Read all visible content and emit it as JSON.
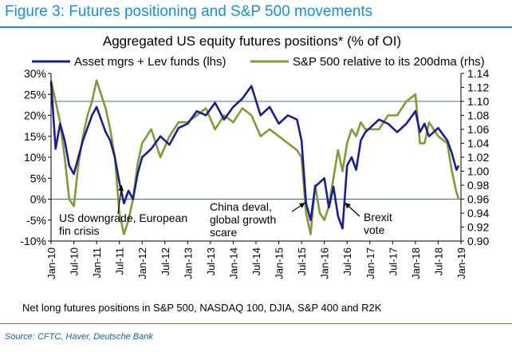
{
  "figure": {
    "title": "Figure 3: Futures positioning and S&P 500 movements",
    "footnote": "Net long futures positions in S&P 500, NASDAQ 100, DJIA, S&P 400 and R2K",
    "source": "Source: CFTC, Haver, Deutsche Bank"
  },
  "chart_data": {
    "type": "line",
    "title": "Aggregated US equity futures positions* (% of OI)",
    "x_tick_labels": [
      "Jan-10",
      "Jul-10",
      "Jan-11",
      "Jul-11",
      "Jan-12",
      "Jul-12",
      "Jan-13",
      "Jul-13",
      "Jan-14",
      "Jul-14",
      "Jan-15",
      "Jul-15",
      "Jan-16",
      "Jul-16",
      "Jan-17",
      "Jul-17",
      "Jan-18",
      "Jul-18",
      "Jan-19"
    ],
    "left_axis": {
      "ticks": [
        "30%",
        "25%",
        "20%",
        "15%",
        "10%",
        "5%",
        "0%",
        "-5%",
        "-10%"
      ],
      "range": [
        -10,
        30
      ],
      "unit": "%"
    },
    "right_axis": {
      "ticks": [
        "1.14",
        "1.12",
        "1.10",
        "1.08",
        "1.06",
        "1.04",
        "1.02",
        "1.00",
        "0.98",
        "0.96",
        "0.94",
        "0.92",
        "0.90"
      ],
      "range": [
        0.9,
        1.14
      ]
    },
    "grid": false,
    "reference_lines": [
      {
        "axis": "right",
        "value": 1.1
      },
      {
        "axis": "right",
        "value": 0.96
      }
    ],
    "legend_position": "top",
    "series": [
      {
        "name": "Asset mgrs + Lev funds (lhs)",
        "axis": "left",
        "color": "#1b1f8c",
        "x": [
          2010.0,
          2010.1,
          2010.2,
          2010.3,
          2010.4,
          2010.5,
          2010.6,
          2010.7,
          2010.8,
          2010.9,
          2011.0,
          2011.1,
          2011.2,
          2011.3,
          2011.4,
          2011.5,
          2011.6,
          2011.7,
          2011.8,
          2011.9,
          2012.0,
          2012.2,
          2012.4,
          2012.6,
          2012.8,
          2013.0,
          2013.2,
          2013.4,
          2013.6,
          2013.8,
          2014.0,
          2014.2,
          2014.4,
          2014.6,
          2014.8,
          2015.0,
          2015.2,
          2015.4,
          2015.5,
          2015.6,
          2015.7,
          2015.8,
          2016.0,
          2016.1,
          2016.2,
          2016.3,
          2016.4,
          2016.5,
          2016.6,
          2016.7,
          2016.8,
          2016.9,
          2017.0,
          2017.2,
          2017.4,
          2017.6,
          2017.8,
          2018.0,
          2018.1,
          2018.2,
          2018.3,
          2018.5,
          2018.7,
          2018.8,
          2018.9,
          2018.95
        ],
        "values": [
          28,
          12,
          18,
          14,
          8,
          6,
          10,
          14,
          17,
          20,
          22,
          19,
          16,
          14,
          10,
          4,
          -1,
          2,
          0,
          6,
          10,
          12,
          15,
          13,
          17,
          18,
          21,
          20,
          23,
          19,
          22,
          24,
          27,
          20,
          22,
          18,
          20,
          19,
          14,
          -1,
          -5,
          3,
          5,
          -2,
          3,
          -4,
          -7,
          8,
          10,
          7,
          14,
          16,
          17,
          19,
          18,
          16,
          18,
          21,
          16,
          18,
          15,
          17,
          14,
          11,
          7,
          8
        ]
      },
      {
        "name": "S&P 500 relative to its 200dma (rhs)",
        "axis": "right",
        "color": "#7f9a3a",
        "x": [
          2010.0,
          2010.1,
          2010.2,
          2010.3,
          2010.4,
          2010.5,
          2010.6,
          2010.7,
          2010.8,
          2010.9,
          2011.0,
          2011.1,
          2011.2,
          2011.3,
          2011.4,
          2011.5,
          2011.6,
          2011.7,
          2011.8,
          2011.9,
          2012.0,
          2012.2,
          2012.4,
          2012.6,
          2012.8,
          2013.0,
          2013.2,
          2013.4,
          2013.6,
          2013.8,
          2014.0,
          2014.2,
          2014.4,
          2014.6,
          2014.8,
          2015.0,
          2015.2,
          2015.4,
          2015.5,
          2015.6,
          2015.7,
          2015.8,
          2015.9,
          2016.0,
          2016.1,
          2016.2,
          2016.3,
          2016.4,
          2016.5,
          2016.6,
          2016.7,
          2016.8,
          2016.9,
          2017.0,
          2017.2,
          2017.4,
          2017.6,
          2017.8,
          2018.0,
          2018.1,
          2018.2,
          2018.3,
          2018.5,
          2018.7,
          2018.8,
          2018.9,
          2018.95
        ],
        "values": [
          1.13,
          1.1,
          1.07,
          1.02,
          0.96,
          0.95,
          1.01,
          1.05,
          1.08,
          1.1,
          1.13,
          1.11,
          1.09,
          1.06,
          1.02,
          0.94,
          0.91,
          0.93,
          0.96,
          1.01,
          1.04,
          1.06,
          1.02,
          1.05,
          1.07,
          1.07,
          1.08,
          1.09,
          1.06,
          1.08,
          1.07,
          1.09,
          1.08,
          1.05,
          1.06,
          1.05,
          1.04,
          1.03,
          1.02,
          0.94,
          0.91,
          0.98,
          0.94,
          0.93,
          0.95,
          0.99,
          1.03,
          1.0,
          1.04,
          1.06,
          1.05,
          1.07,
          1.06,
          1.06,
          1.06,
          1.08,
          1.08,
          1.1,
          1.11,
          1.04,
          1.04,
          1.07,
          1.05,
          1.04,
          1.0,
          0.97,
          0.96
        ]
      }
    ],
    "annotations": [
      {
        "text_lines": [
          "US downgrade, European",
          "fin crisis"
        ],
        "x": 2011.6,
        "y": 0.97
      },
      {
        "text_lines": [
          "China deval,",
          "global growth",
          "scare"
        ],
        "x": 2015.6,
        "y": 0.96
      },
      {
        "text_lines": [
          "Brexit",
          "vote"
        ],
        "x": 2016.5,
        "y": 0.93
      }
    ]
  }
}
